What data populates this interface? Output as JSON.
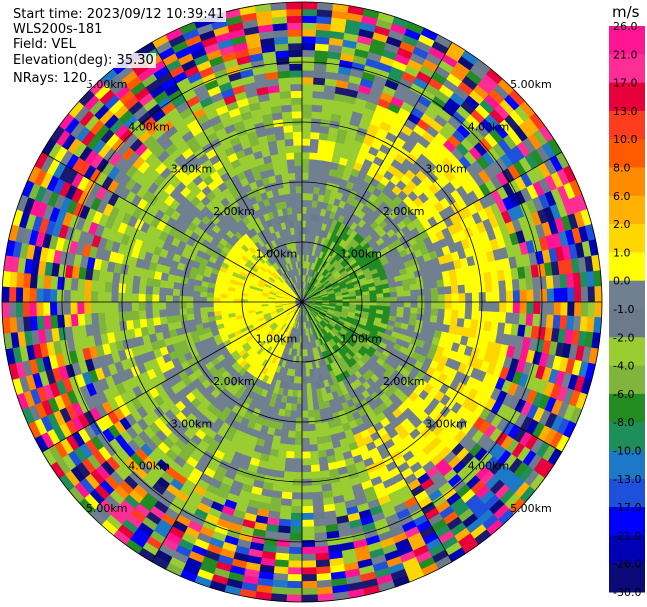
{
  "header": {
    "start_time": "Start time: 2023/09/12 10:39:41",
    "instrument": "WLS200s-181",
    "field": "Field: VEL",
    "elevation": "Elevation(deg): 35.30",
    "nrays": "NRays: 120"
  },
  "chart_data": {
    "type": "heatmap",
    "subtype": "ppi-polar",
    "field": "VEL",
    "unit": "m/s",
    "n_rays": 120,
    "elevation_deg": 35.3,
    "range_rings_km": [
      1,
      2,
      3,
      4,
      5
    ],
    "range_ring_labels": [
      "1.00km",
      "2.00km",
      "3.00km",
      "4.00km",
      "5.00km"
    ],
    "max_range_km": 5.0,
    "radial_lines_deg": [
      0,
      30,
      60,
      90,
      120,
      150,
      180,
      210,
      240,
      270,
      300,
      330
    ],
    "colorbar": {
      "unit_label": "m/s",
      "tick_labels": [
        "26.0",
        "21.0",
        "17.0",
        "13.0",
        "10.0",
        "8.0",
        "6.0",
        "2.0",
        "1.0",
        "0.0",
        "-1.0",
        "-2.0",
        "-4.0",
        "-6.0",
        "-8.0",
        "-10.0",
        "-13.0",
        "-17.0",
        "-21.0",
        "-26.0",
        "-30.0"
      ],
      "colors": [
        "#ff1493",
        "#ff2d95",
        "#e8003a",
        "#ff3c1e",
        "#ff5a00",
        "#ff8c00",
        "#ffb000",
        "#ffd700",
        "#ffff00",
        "#708090",
        "#6b7b8c",
        "#9acd32",
        "#7fb53a",
        "#228b22",
        "#1e8f5a",
        "#1e78c8",
        "#1e50dc",
        "#0000ff",
        "#0000b4",
        "#0a0a78",
        "#191970"
      ]
    },
    "pattern": {
      "center_zero": true,
      "inner_positive_lobe_azimuth_deg": [
        200,
        320
      ],
      "inner_negative_lobe_azimuth_deg": [
        20,
        160
      ],
      "noise_beyond_km": 3.5
    }
  }
}
